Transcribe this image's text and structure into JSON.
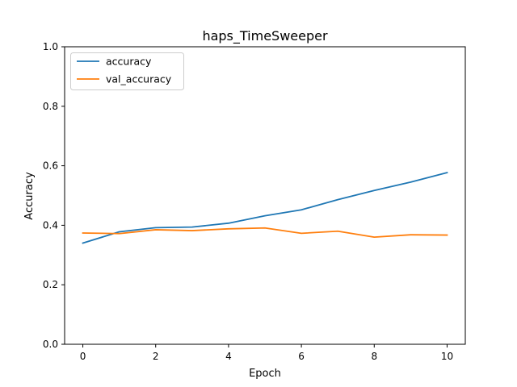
{
  "chart_data": {
    "type": "line",
    "title": "haps_TimeSweeper",
    "xlabel": "Epoch",
    "ylabel": "Accuracy",
    "x": [
      0,
      1,
      2,
      3,
      4,
      5,
      6,
      7,
      8,
      9,
      10
    ],
    "xlim": [
      -0.5,
      10.5
    ],
    "ylim": [
      0.0,
      1.0
    ],
    "xticks": [
      "0",
      "2",
      "4",
      "6",
      "8",
      "10"
    ],
    "yticks": [
      "0.0",
      "0.2",
      "0.4",
      "0.6",
      "0.8",
      "1.0"
    ],
    "grid": false,
    "legend_position": "top-left",
    "series": [
      {
        "name": "accuracy",
        "color": "#1f77b4",
        "values": [
          0.34,
          0.378,
          0.392,
          0.394,
          0.407,
          0.432,
          0.452,
          0.486,
          0.517,
          0.545,
          0.577
        ]
      },
      {
        "name": "val_accuracy",
        "color": "#ff7f0e",
        "values": [
          0.374,
          0.372,
          0.385,
          0.382,
          0.388,
          0.391,
          0.373,
          0.38,
          0.36,
          0.368,
          0.367
        ]
      }
    ]
  }
}
